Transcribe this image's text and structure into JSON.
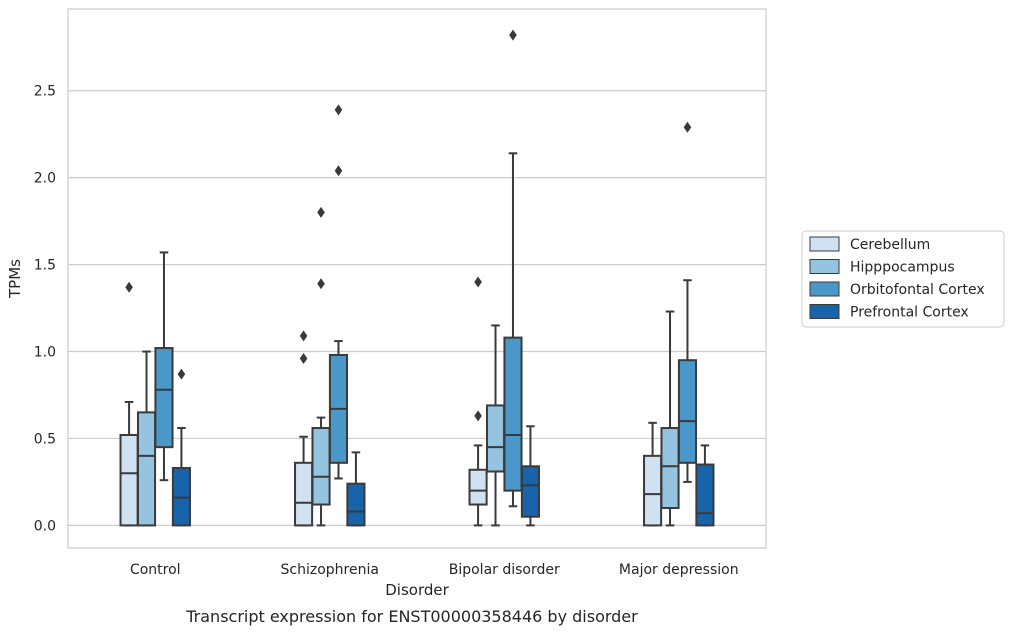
{
  "chart_data": {
    "type": "box",
    "title": "",
    "caption": "Transcript expression for ENST00000358446 by disorder",
    "xlabel": "Disorder",
    "ylabel": "TPMs",
    "ylim": [
      -0.13,
      2.97
    ],
    "yticks": [
      "0.0",
      "0.5",
      "1.0",
      "1.5",
      "2.0",
      "2.5"
    ],
    "ytick_values": [
      0.0,
      0.5,
      1.0,
      1.5,
      2.0,
      2.5
    ],
    "grid": "horizontal",
    "legend_position": "right",
    "categories": [
      "Control",
      "Schizophrenia",
      "Bipolar disorder",
      "Major depression"
    ],
    "series": [
      {
        "name": "Cerebellum",
        "color": "#d0e1f2",
        "boxes": [
          {
            "whisker_low": 0.0,
            "q1": 0.0,
            "median": 0.3,
            "q3": 0.52,
            "whisker_high": 0.71,
            "outliers": [
              1.37
            ]
          },
          {
            "whisker_low": 0.0,
            "q1": 0.0,
            "median": 0.13,
            "q3": 0.36,
            "whisker_high": 0.51,
            "outliers": [
              0.96,
              1.09
            ]
          },
          {
            "whisker_low": 0.0,
            "q1": 0.12,
            "median": 0.2,
            "q3": 0.32,
            "whisker_high": 0.46,
            "outliers": [
              0.63,
              1.4
            ]
          },
          {
            "whisker_low": 0.0,
            "q1": 0.0,
            "median": 0.18,
            "q3": 0.4,
            "whisker_high": 0.59,
            "outliers": []
          }
        ]
      },
      {
        "name": "Hipppocampus",
        "color": "#94c4df",
        "boxes": [
          {
            "whisker_low": 0.0,
            "q1": 0.0,
            "median": 0.4,
            "q3": 0.65,
            "whisker_high": 1.0,
            "outliers": []
          },
          {
            "whisker_low": 0.0,
            "q1": 0.12,
            "median": 0.28,
            "q3": 0.56,
            "whisker_high": 0.62,
            "outliers": [
              1.39,
              1.8
            ]
          },
          {
            "whisker_low": 0.0,
            "q1": 0.31,
            "median": 0.45,
            "q3": 0.69,
            "whisker_high": 1.15,
            "outliers": []
          },
          {
            "whisker_low": 0.0,
            "q1": 0.1,
            "median": 0.34,
            "q3": 0.56,
            "whisker_high": 1.23,
            "outliers": []
          }
        ]
      },
      {
        "name": "Orbitofontal Cortex",
        "color": "#4a98c9",
        "boxes": [
          {
            "whisker_low": 0.26,
            "q1": 0.45,
            "median": 0.78,
            "q3": 1.02,
            "whisker_high": 1.57,
            "outliers": []
          },
          {
            "whisker_low": 0.27,
            "q1": 0.36,
            "median": 0.67,
            "q3": 0.98,
            "whisker_high": 1.06,
            "outliers": [
              2.04,
              2.39
            ]
          },
          {
            "whisker_low": 0.11,
            "q1": 0.2,
            "median": 0.52,
            "q3": 1.08,
            "whisker_high": 2.14,
            "outliers": [
              2.82
            ]
          },
          {
            "whisker_low": 0.25,
            "q1": 0.36,
            "median": 0.6,
            "q3": 0.95,
            "whisker_high": 1.41,
            "outliers": [
              2.29
            ]
          }
        ]
      },
      {
        "name": "Prefrontal Cortex",
        "color": "#1764ab",
        "boxes": [
          {
            "whisker_low": 0.0,
            "q1": 0.0,
            "median": 0.16,
            "q3": 0.33,
            "whisker_high": 0.56,
            "outliers": [
              0.87
            ]
          },
          {
            "whisker_low": 0.0,
            "q1": 0.0,
            "median": 0.08,
            "q3": 0.24,
            "whisker_high": 0.42,
            "outliers": []
          },
          {
            "whisker_low": 0.0,
            "q1": 0.05,
            "median": 0.23,
            "q3": 0.34,
            "whisker_high": 0.57,
            "outliers": []
          },
          {
            "whisker_low": 0.0,
            "q1": 0.0,
            "median": 0.07,
            "q3": 0.35,
            "whisker_high": 0.46,
            "outliers": []
          }
        ]
      }
    ]
  }
}
